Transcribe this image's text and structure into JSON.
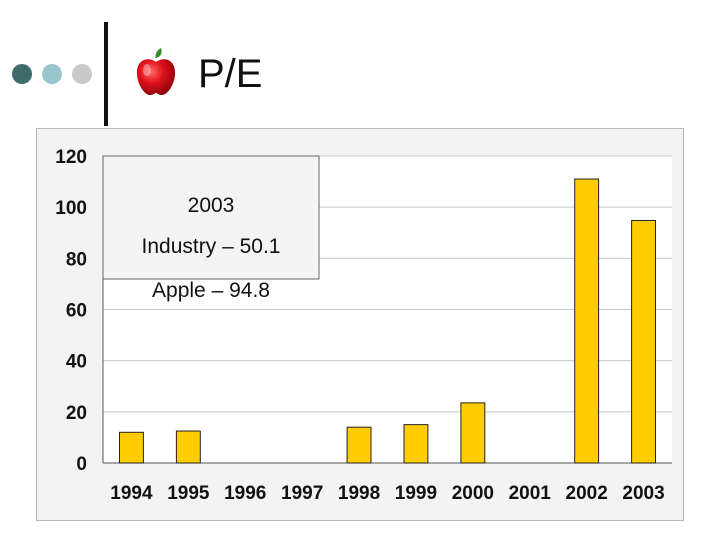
{
  "slide": {
    "title": "P/E",
    "logo_icon": "apple-logo-icon",
    "nav_dots": [
      "teal-dot",
      "light-teal-dot",
      "gray-dot"
    ]
  },
  "chart_data": {
    "type": "bar",
    "categories": [
      "1994",
      "1995",
      "1996",
      "1997",
      "1998",
      "1999",
      "2000",
      "2001",
      "2002",
      "2003"
    ],
    "values": [
      12,
      12.5,
      null,
      null,
      14,
      15,
      23.5,
      null,
      111,
      94.8
    ],
    "ylim": [
      0,
      120
    ],
    "yticks": [
      0,
      20,
      40,
      60,
      80,
      100,
      120
    ],
    "grid": true,
    "bar_color": "#ffcc00",
    "annotation": {
      "lines": [
        "2003",
        "Industry – 50.1",
        "Apple – 94.8"
      ]
    }
  },
  "colors": {
    "plot_bg": "#ffffff",
    "frame_bg": "#f3f3f3",
    "grid": "#c8c8c8",
    "annotation_bg": "#f4f4f4"
  }
}
